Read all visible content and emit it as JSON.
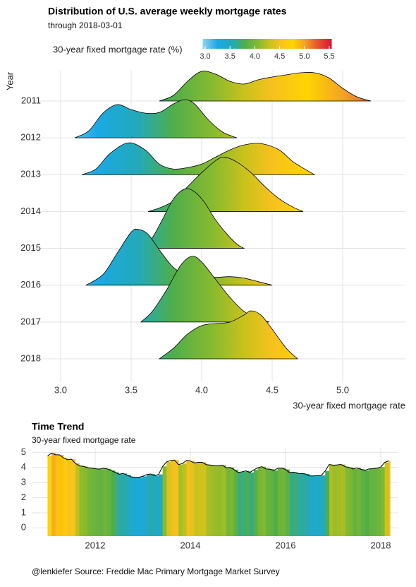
{
  "chart_data": [
    {
      "type": "ridgeline",
      "title": "Distribution of U.S. average weekly mortgage rates",
      "subtitle": "through  2018-03-01",
      "xlabel": "30-year fixed mortgage rate",
      "ylabel": "Year",
      "legend_title": "30-year fixed mortgage rate (%)",
      "categories": [
        "2011",
        "2012",
        "2013",
        "2014",
        "2015",
        "2016",
        "2017",
        "2018"
      ],
      "series": [
        {
          "x": [
            3.7,
            3.8,
            3.9,
            4.0,
            4.1,
            4.2,
            4.3,
            4.4,
            4.5,
            4.6,
            4.7,
            4.8,
            4.9,
            5.0,
            5.1,
            5.2
          ],
          "density": [
            0,
            8,
            28,
            42,
            38,
            28,
            24,
            30,
            34,
            37,
            40,
            40,
            33,
            18,
            6,
            0
          ]
        },
        {
          "x": [
            3.1,
            3.2,
            3.3,
            3.4,
            3.5,
            3.6,
            3.7,
            3.8,
            3.88,
            3.95,
            4.05,
            4.15,
            4.25
          ],
          "density": [
            0,
            10,
            35,
            47,
            40,
            35,
            36,
            48,
            54,
            48,
            25,
            8,
            0
          ]
        },
        {
          "x": [
            3.15,
            3.25,
            3.35,
            3.48,
            3.6,
            3.7,
            3.8,
            3.9,
            4.0,
            4.1,
            4.2,
            4.3,
            4.42,
            4.55,
            4.65,
            4.8
          ],
          "density": [
            0,
            8,
            30,
            45,
            35,
            15,
            8,
            10,
            15,
            25,
            35,
            42,
            44,
            35,
            18,
            0
          ]
        },
        {
          "x": [
            3.62,
            3.7,
            3.8,
            3.9,
            4.0,
            4.1,
            4.16,
            4.25,
            4.35,
            4.45,
            4.55,
            4.65,
            4.72
          ],
          "density": [
            0,
            5,
            15,
            35,
            55,
            72,
            77,
            70,
            55,
            35,
            18,
            6,
            0
          ]
        },
        {
          "x": [
            3.58,
            3.65,
            3.72,
            3.8,
            3.88,
            3.95,
            4.02,
            4.1,
            4.18,
            4.25,
            4.3
          ],
          "density": [
            0,
            15,
            40,
            70,
            84,
            80,
            65,
            40,
            20,
            6,
            0
          ]
        },
        {
          "x": [
            3.18,
            3.3,
            3.4,
            3.5,
            3.55,
            3.62,
            3.7,
            3.8,
            3.9,
            4.0,
            4.1,
            4.2,
            4.3,
            4.4,
            4.5
          ],
          "density": [
            0,
            15,
            45,
            75,
            79,
            72,
            50,
            25,
            15,
            12,
            11,
            12,
            10,
            5,
            0
          ]
        },
        {
          "x": [
            3.57,
            3.65,
            3.75,
            3.85,
            3.93,
            4.0,
            4.1,
            4.2,
            4.3,
            4.4,
            4.48
          ],
          "density": [
            0,
            15,
            45,
            80,
            93,
            85,
            60,
            35,
            15,
            5,
            0
          ]
        },
        {
          "x": [
            3.7,
            3.8,
            3.9,
            4.0,
            4.1,
            4.2,
            4.3,
            4.35,
            4.42,
            4.5,
            4.6,
            4.68
          ],
          "density": [
            0,
            15,
            35,
            47,
            50,
            52,
            62,
            68,
            62,
            42,
            15,
            0
          ]
        }
      ],
      "xlim": [
        2.795,
        5.445
      ],
      "xticks": [
        {
          "value": 3,
          "label": "3.0"
        },
        3.5,
        {
          "value": 4,
          "label": "4.0"
        },
        4.5,
        {
          "value": 5,
          "label": "5.0"
        }
      ],
      "colorbar_ticks": [
        {
          "value": 3,
          "label": "3.0"
        },
        3.5,
        {
          "value": 4,
          "label": "4.0"
        },
        4.5,
        {
          "value": 5,
          "label": "5.0"
        },
        5.5
      ],
      "colorscale": [
        {
          "value": 2.95,
          "color": "#8fd3f0"
        },
        {
          "value": 3.25,
          "color": "#1aa9e6"
        },
        {
          "value": 3.55,
          "color": "#23a9b8"
        },
        {
          "value": 3.8,
          "color": "#4fae4a"
        },
        {
          "value": 4.1,
          "color": "#8dbb2c"
        },
        {
          "value": 4.3,
          "color": "#c8c21c"
        },
        {
          "value": 4.5,
          "color": "#f7c11e"
        },
        {
          "value": 4.75,
          "color": "#ffd400"
        },
        {
          "value": 5.0,
          "color": "#f4a326"
        },
        {
          "value": 5.25,
          "color": "#e8582c"
        },
        {
          "value": 5.55,
          "color": "#d7143c"
        }
      ],
      "grid": true
    },
    {
      "type": "area",
      "title": "Time Trend",
      "subtitle": "30-year fixed mortgage rate",
      "x": [
        2011.0,
        2011.083,
        2011.167,
        2011.25,
        2011.333,
        2011.417,
        2011.5,
        2011.583,
        2011.667,
        2011.75,
        2011.833,
        2011.917,
        2012.0,
        2012.083,
        2012.167,
        2012.25,
        2012.333,
        2012.417,
        2012.5,
        2012.583,
        2012.667,
        2012.75,
        2012.833,
        2012.917,
        2013.0,
        2013.083,
        2013.167,
        2013.25,
        2013.333,
        2013.417,
        2013.5,
        2013.583,
        2013.667,
        2013.75,
        2013.833,
        2013.917,
        2014.0,
        2014.083,
        2014.167,
        2014.25,
        2014.333,
        2014.417,
        2014.5,
        2014.583,
        2014.667,
        2014.75,
        2014.833,
        2014.917,
        2015.0,
        2015.083,
        2015.167,
        2015.25,
        2015.333,
        2015.417,
        2015.5,
        2015.583,
        2015.667,
        2015.75,
        2015.833,
        2015.917,
        2016.0,
        2016.083,
        2016.167,
        2016.25,
        2016.333,
        2016.417,
        2016.5,
        2016.583,
        2016.667,
        2016.75,
        2016.833,
        2016.917,
        2017.0,
        2017.083,
        2017.167,
        2017.25,
        2017.333,
        2017.417,
        2017.5,
        2017.583,
        2017.667,
        2017.75,
        2017.833,
        2017.917,
        2018.0,
        2018.083,
        2018.167
      ],
      "values": [
        4.76,
        4.95,
        4.84,
        4.84,
        4.64,
        4.51,
        4.55,
        4.27,
        4.11,
        4.07,
        3.99,
        3.96,
        3.92,
        3.89,
        3.95,
        3.91,
        3.8,
        3.68,
        3.55,
        3.6,
        3.5,
        3.38,
        3.35,
        3.35,
        3.41,
        3.53,
        3.57,
        3.45,
        3.54,
        4.07,
        4.37,
        4.46,
        4.49,
        4.19,
        4.26,
        4.46,
        4.43,
        4.3,
        4.34,
        4.34,
        4.19,
        4.16,
        4.13,
        4.12,
        4.16,
        3.98,
        4.0,
        3.86,
        3.67,
        3.71,
        3.77,
        3.67,
        3.84,
        3.98,
        4.05,
        3.91,
        3.89,
        3.8,
        3.94,
        3.96,
        3.87,
        3.66,
        3.69,
        3.61,
        3.6,
        3.57,
        3.44,
        3.44,
        3.46,
        3.47,
        3.77,
        4.2,
        4.15,
        4.17,
        4.2,
        4.05,
        4.01,
        3.9,
        3.97,
        3.88,
        3.81,
        3.9,
        3.92,
        3.95,
        4.03,
        4.33,
        4.44
      ],
      "xlim": [
        2010.667,
        2018.37
      ],
      "ylim": [
        -0.55,
        5.3
      ],
      "xticks": [
        2012,
        2014,
        2016,
        2018
      ],
      "yticks": [
        0,
        1,
        2,
        3,
        4,
        5
      ],
      "grid": true,
      "line_color": "#000000"
    }
  ],
  "caption": "@lenkiefer Source: Freddie Mac Primary Mortgage Market Survey"
}
